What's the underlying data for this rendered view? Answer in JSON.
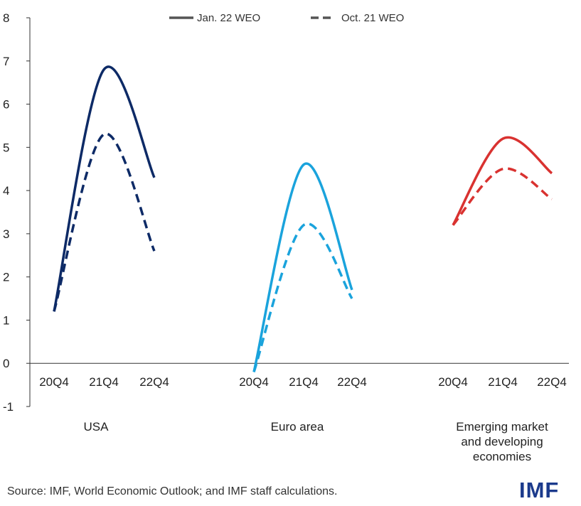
{
  "chart_data": {
    "type": "line",
    "title": "",
    "xlabel": "",
    "ylabel": "",
    "ylim": [
      -1,
      8
    ],
    "yticks": [
      -1,
      0,
      1,
      2,
      3,
      4,
      5,
      6,
      7,
      8
    ],
    "grid": false,
    "legend": {
      "placement": "top-center",
      "entries": [
        {
          "label": "Jan. 22 WEO",
          "style": "solid"
        },
        {
          "label": "Oct. 21 WEO",
          "style": "dashed"
        }
      ]
    },
    "groups": [
      {
        "label_lines": [
          "USA"
        ],
        "color": "#0d2a66",
        "categories": [
          "20Q4",
          "21Q4",
          "22Q4"
        ],
        "series": [
          {
            "legend": "Jan. 22 WEO",
            "values": [
              1.2,
              6.8,
              4.3
            ]
          },
          {
            "legend": "Oct. 21 WEO",
            "values": [
              1.2,
              5.3,
              2.6
            ]
          }
        ]
      },
      {
        "label_lines": [
          "Euro area"
        ],
        "color": "#1aa3dc",
        "categories": [
          "20Q4",
          "21Q4",
          "22Q4"
        ],
        "series": [
          {
            "legend": "Jan. 22 WEO",
            "values": [
              -0.2,
              4.6,
              1.7
            ]
          },
          {
            "legend": "Oct. 21 WEO",
            "values": [
              -0.2,
              3.2,
              1.5
            ]
          }
        ]
      },
      {
        "label_lines": [
          "Emerging market",
          "and developing",
          "economies"
        ],
        "color": "#d93230",
        "categories": [
          "20Q4",
          "21Q4",
          "22Q4"
        ],
        "series": [
          {
            "legend": "Jan. 22 WEO",
            "values": [
              3.2,
              5.2,
              4.4
            ]
          },
          {
            "legend": "Oct. 21 WEO",
            "values": [
              3.2,
              4.5,
              3.8
            ]
          }
        ]
      }
    ]
  },
  "source_note": "Source: IMF, World Economic Outlook; and IMF staff calculations.",
  "logo_text": "IMF"
}
